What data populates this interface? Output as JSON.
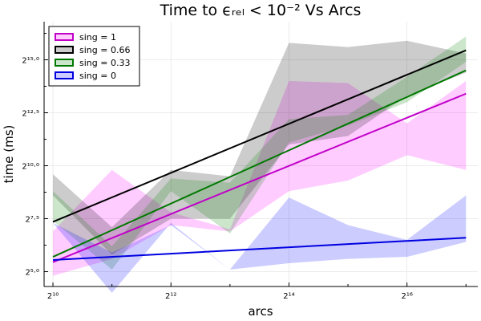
{
  "chart_data": {
    "type": "line",
    "title": "Time to ϵᵣₑₗ < 10⁻² Vs Arcs",
    "xlabel": "arcs",
    "ylabel": "time (ms)",
    "x_scale": "log2",
    "y_scale": "log2",
    "xlim": [
      9.85,
      17.2
    ],
    "ylim": [
      4.3,
      16.8
    ],
    "x_ticks": [
      {
        "value": 10,
        "label": "2¹⁰"
      },
      {
        "value": 12,
        "label": "2¹²"
      },
      {
        "value": 14,
        "label": "2¹⁴"
      },
      {
        "value": 16,
        "label": "2¹⁶"
      }
    ],
    "y_ticks": [
      {
        "value": 5.0,
        "label": "2⁵·⁰"
      },
      {
        "value": 7.5,
        "label": "2⁷·⁵"
      },
      {
        "value": 10.0,
        "label": "2¹⁰·⁰"
      },
      {
        "value": 12.5,
        "label": "2¹²·⁵"
      },
      {
        "value": 15.0,
        "label": "2¹⁵·⁰"
      }
    ],
    "grid": true,
    "legend_position": "top-left",
    "series": [
      {
        "name": "sing = 1",
        "color": "#ff00ff",
        "line_color": "#c000c8",
        "fit": [
          [
            10,
            5.45
          ],
          [
            17,
            13.4
          ]
        ],
        "band_upper": [
          [
            10,
            6.9
          ],
          [
            11,
            9.8
          ],
          [
            12,
            7.8
          ],
          [
            13,
            7.0
          ],
          [
            14,
            14.0
          ],
          [
            15,
            13.9
          ],
          [
            16,
            12.0
          ],
          [
            17,
            14.0
          ]
        ],
        "band_lower": [
          [
            10,
            4.8
          ],
          [
            11,
            5.6
          ],
          [
            12,
            7.2
          ],
          [
            13,
            6.9
          ],
          [
            14,
            8.8
          ],
          [
            15,
            9.3
          ],
          [
            16,
            10.5
          ],
          [
            17,
            9.8
          ]
        ]
      },
      {
        "name": "sing = 0.66",
        "color": "#000000",
        "line_color": "#000000",
        "fit": [
          [
            10,
            7.35
          ],
          [
            17,
            15.45
          ]
        ],
        "band_upper": [
          [
            10,
            9.6
          ],
          [
            11,
            7.1
          ],
          [
            12,
            9.8
          ],
          [
            13,
            9.5
          ],
          [
            14,
            15.8
          ],
          [
            15,
            15.6
          ],
          [
            16,
            15.9
          ],
          [
            17,
            15.3
          ]
        ],
        "band_lower": [
          [
            10,
            8.6
          ],
          [
            11,
            5.8
          ],
          [
            12,
            7.5
          ],
          [
            13,
            7.5
          ],
          [
            14,
            11.0
          ],
          [
            15,
            11.4
          ],
          [
            16,
            13.3
          ],
          [
            17,
            14.4
          ]
        ]
      },
      {
        "name": "sing = 0.33",
        "color": "#008000",
        "line_color": "#007800",
        "fit": [
          [
            10,
            5.7
          ],
          [
            17,
            14.5
          ]
        ],
        "band_upper": [
          [
            10,
            8.8
          ],
          [
            11,
            6.2
          ],
          [
            12,
            9.4
          ],
          [
            13,
            9.2
          ],
          [
            14,
            12.2
          ],
          [
            15,
            12.4
          ],
          [
            16,
            14.2
          ],
          [
            17,
            16.1
          ]
        ],
        "band_lower": [
          [
            10,
            7.4
          ],
          [
            11,
            5.1
          ],
          [
            12,
            8.8
          ],
          [
            13,
            6.8
          ],
          [
            14,
            11.1
          ],
          [
            15,
            11.9
          ],
          [
            16,
            13.0
          ],
          [
            17,
            14.9
          ]
        ]
      },
      {
        "name": "sing = 0",
        "color": "#0000ff",
        "line_color": "#0000e0",
        "fit": [
          [
            10,
            5.55
          ],
          [
            17,
            6.6
          ]
        ],
        "band_upper": [
          [
            10,
            7.3
          ],
          [
            11,
            5.9
          ],
          [
            12,
            7.2
          ],
          [
            13,
            5.1
          ],
          [
            14,
            8.5
          ],
          [
            15,
            7.2
          ],
          [
            16,
            6.5
          ],
          [
            17,
            8.6
          ]
        ],
        "band_lower": [
          [
            10,
            7.3
          ],
          [
            11,
            4.0
          ],
          [
            12,
            7.3
          ],
          [
            13,
            5.1
          ],
          [
            14,
            5.4
          ],
          [
            15,
            5.6
          ],
          [
            16,
            5.7
          ],
          [
            17,
            6.4
          ]
        ]
      }
    ]
  }
}
